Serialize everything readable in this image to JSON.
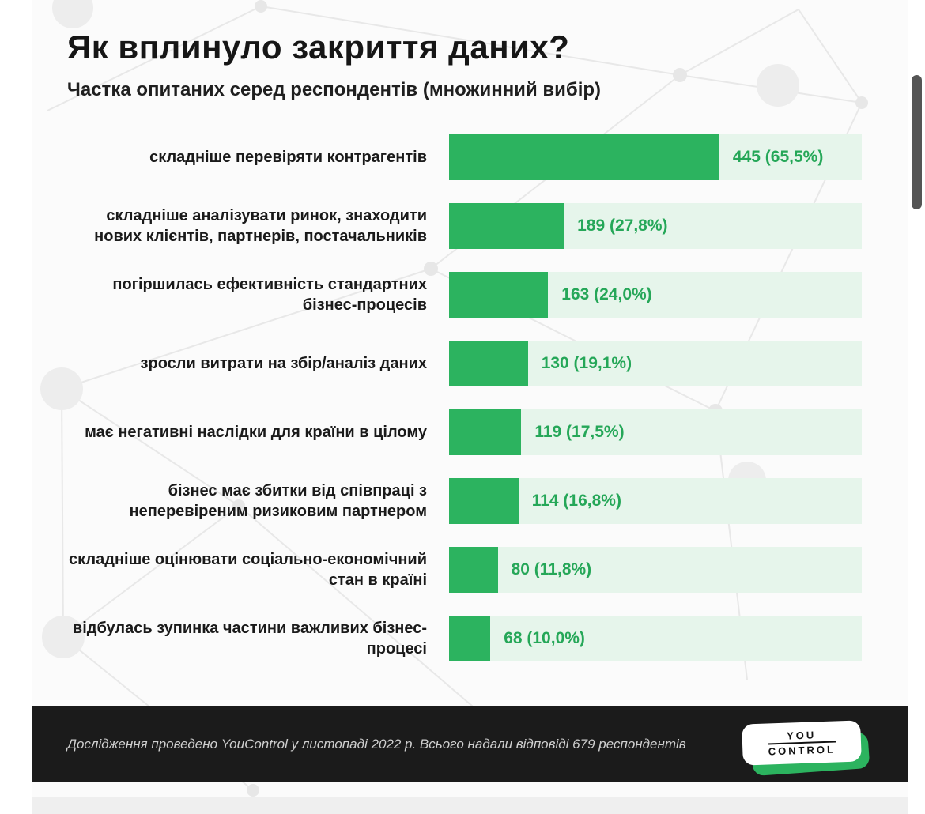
{
  "page": {
    "title": "Як вплинуло закриття даних?",
    "subtitle": "Частка опитаних серед респондентів (множинний вибір)"
  },
  "chart_data": {
    "type": "bar",
    "orientation": "horizontal",
    "title": "Як вплинуло закриття даних?",
    "subtitle": "Частка опитаних серед респондентів (множинний вибір)",
    "xlim_percent": [
      0,
      100
    ],
    "categories": [
      "складніше перевіряти контрагентів",
      "складніше аналізувати ринок, знаходити нових клієнтів, партнерів, постачальників",
      "погіршилась ефективність стандартних бізнес-процесів",
      "зросли витрати на збір/аналіз даних",
      "має негативні наслідки для країни в цілому",
      "бізнес має збитки від співпраці з неперевіреним ризиковим партнером",
      "складніше оцінювати соціально-економічний стан в країні",
      "відбулась зупинка частини важливих бізнес-процесі"
    ],
    "values": [
      445,
      189,
      163,
      130,
      119,
      114,
      80,
      68
    ],
    "percents": [
      65.5,
      27.8,
      24.0,
      19.1,
      17.5,
      16.8,
      11.8,
      10.0
    ],
    "total_respondents": 679,
    "bar_color": "#2cb35f",
    "track_color": "#e6f5eb",
    "value_color": "#25a758",
    "rows": [
      {
        "label": "складніше перевіряти контрагентів",
        "value": 445,
        "percent": 65.5,
        "value_label": "445 (65,5%)"
      },
      {
        "label": "складніше аналізувати ринок, знаходити нових клієнтів, партнерів, постачальників",
        "value": 189,
        "percent": 27.8,
        "value_label": "189 (27,8%)"
      },
      {
        "label": "погіршилась ефективність стандартних бізнес-процесів",
        "value": 163,
        "percent": 24.0,
        "value_label": "163 (24,0%)"
      },
      {
        "label": "зросли витрати на збір/аналіз даних",
        "value": 130,
        "percent": 19.1,
        "value_label": "130 (19,1%)"
      },
      {
        "label": "має негативні наслідки для країни в цілому",
        "value": 119,
        "percent": 17.5,
        "value_label": "119 (17,5%)"
      },
      {
        "label": "бізнес має збитки від співпраці з неперевіреним ризиковим партнером",
        "value": 114,
        "percent": 16.8,
        "value_label": "114 (16,8%)"
      },
      {
        "label": "складніше оцінювати соціально-економічний стан в країні",
        "value": 80,
        "percent": 11.8,
        "value_label": "80 (11,8%)"
      },
      {
        "label": "відбулась зупинка частини важливих бізнес-процесі",
        "value": 68,
        "percent": 10.0,
        "value_label": "68 (10,0%)"
      }
    ]
  },
  "footer": {
    "note": "Дослідження проведено YouControl у листопаді 2022 р. Всього надали відповіді 679 респондентів",
    "logo_line1": "YOU",
    "logo_line2": "CONTROL"
  }
}
